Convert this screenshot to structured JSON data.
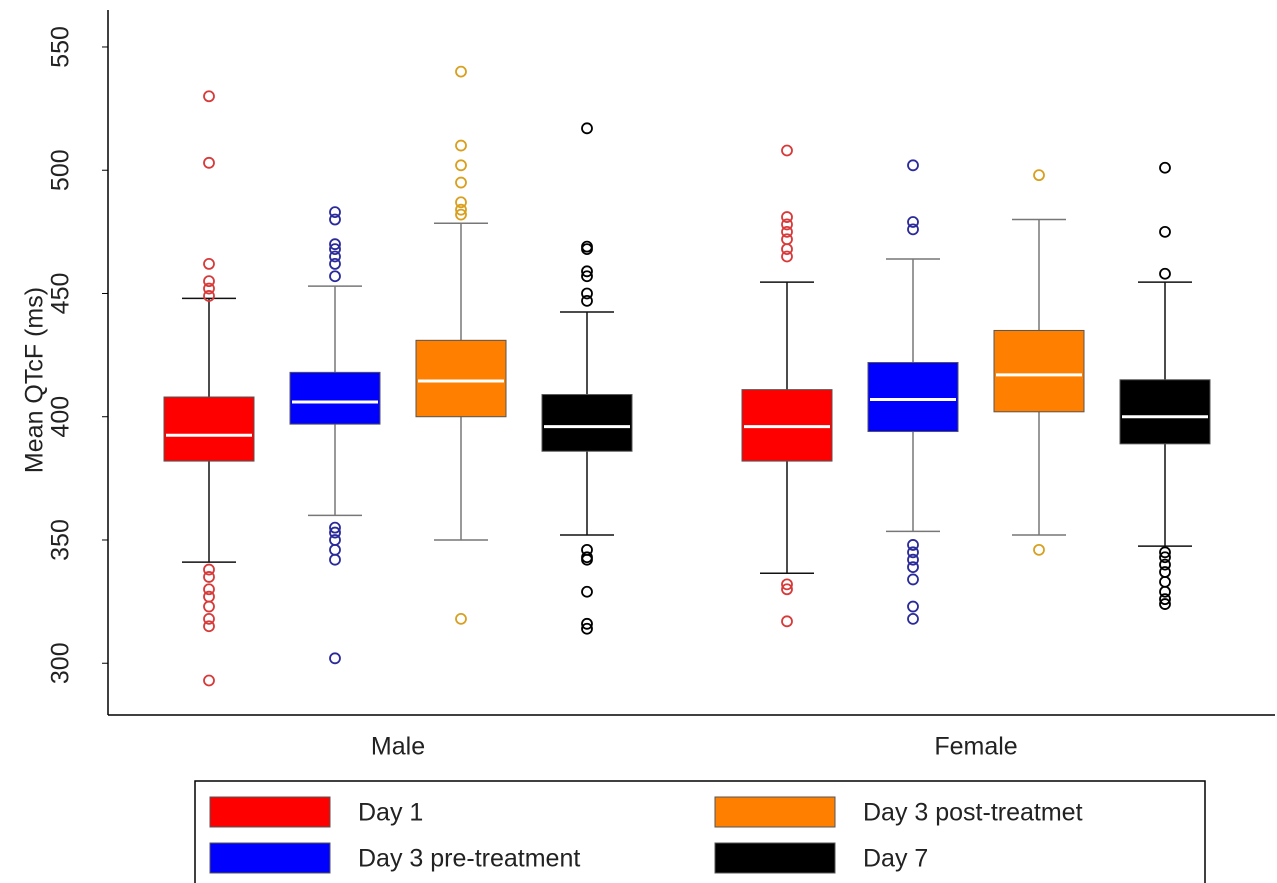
{
  "chart_data": {
    "type": "box",
    "y_label": "Mean QTcF (ms)",
    "categories": [
      "Male",
      "Female"
    ],
    "ylim": [
      279,
      565
    ],
    "yticks": [
      300,
      350,
      400,
      450,
      500,
      550
    ],
    "grid": false,
    "legend_position": "bottom",
    "series": [
      {
        "name": "Day 1",
        "color": "#ff0000",
        "outlier_color": "#d83a3a",
        "whisker_low": [
          341,
          336.5
        ],
        "q1": [
          382,
          382
        ],
        "median": [
          392.5,
          396
        ],
        "q3": [
          408,
          411
        ],
        "whisker_high": [
          448,
          454.6
        ],
        "outliers": [
          [
            530,
            503,
            462,
            455,
            452,
            449,
            338,
            335,
            330,
            327,
            323,
            318,
            315,
            293
          ],
          [
            508,
            481,
            478,
            475,
            472,
            468,
            465,
            332,
            330,
            317
          ]
        ]
      },
      {
        "name": "Day 3 pre-treatment",
        "color": "#0000ff",
        "outlier_color": "#2a2a9a",
        "whisker_low": [
          360,
          353.5
        ],
        "q1": [
          397,
          394
        ],
        "median": [
          406,
          407
        ],
        "q3": [
          418,
          422
        ],
        "whisker_high": [
          453,
          464
        ],
        "outliers": [
          [
            483,
            480,
            470,
            468,
            465,
            462,
            457,
            355,
            353,
            350,
            346,
            342,
            302
          ],
          [
            502,
            479,
            476,
            348,
            345,
            342,
            339,
            334,
            323,
            318
          ]
        ]
      },
      {
        "name": "Day 3 post-treatmet",
        "color": "#ff8000",
        "outlier_color": "#d9a020",
        "whisker_low": [
          350,
          352
        ],
        "q1": [
          400,
          402
        ],
        "median": [
          414.5,
          417
        ],
        "q3": [
          431,
          435
        ],
        "whisker_high": [
          478.5,
          480
        ],
        "outliers": [
          [
            540,
            510,
            502,
            495,
            487,
            484,
            482,
            318
          ],
          [
            498,
            346
          ]
        ]
      },
      {
        "name": "Day 7",
        "color": "#000000",
        "outlier_color": "#000000",
        "whisker_low": [
          352,
          347.5
        ],
        "q1": [
          386,
          389
        ],
        "median": [
          396,
          400
        ],
        "q3": [
          409,
          415
        ],
        "whisker_high": [
          442.5,
          454.6
        ],
        "outliers": [
          [
            517,
            469,
            468,
            459,
            457,
            450,
            447,
            346,
            343,
            342,
            329,
            316,
            314
          ],
          [
            501,
            475,
            458,
            345,
            343,
            340,
            337,
            333,
            329,
            326,
            324
          ]
        ]
      }
    ]
  }
}
